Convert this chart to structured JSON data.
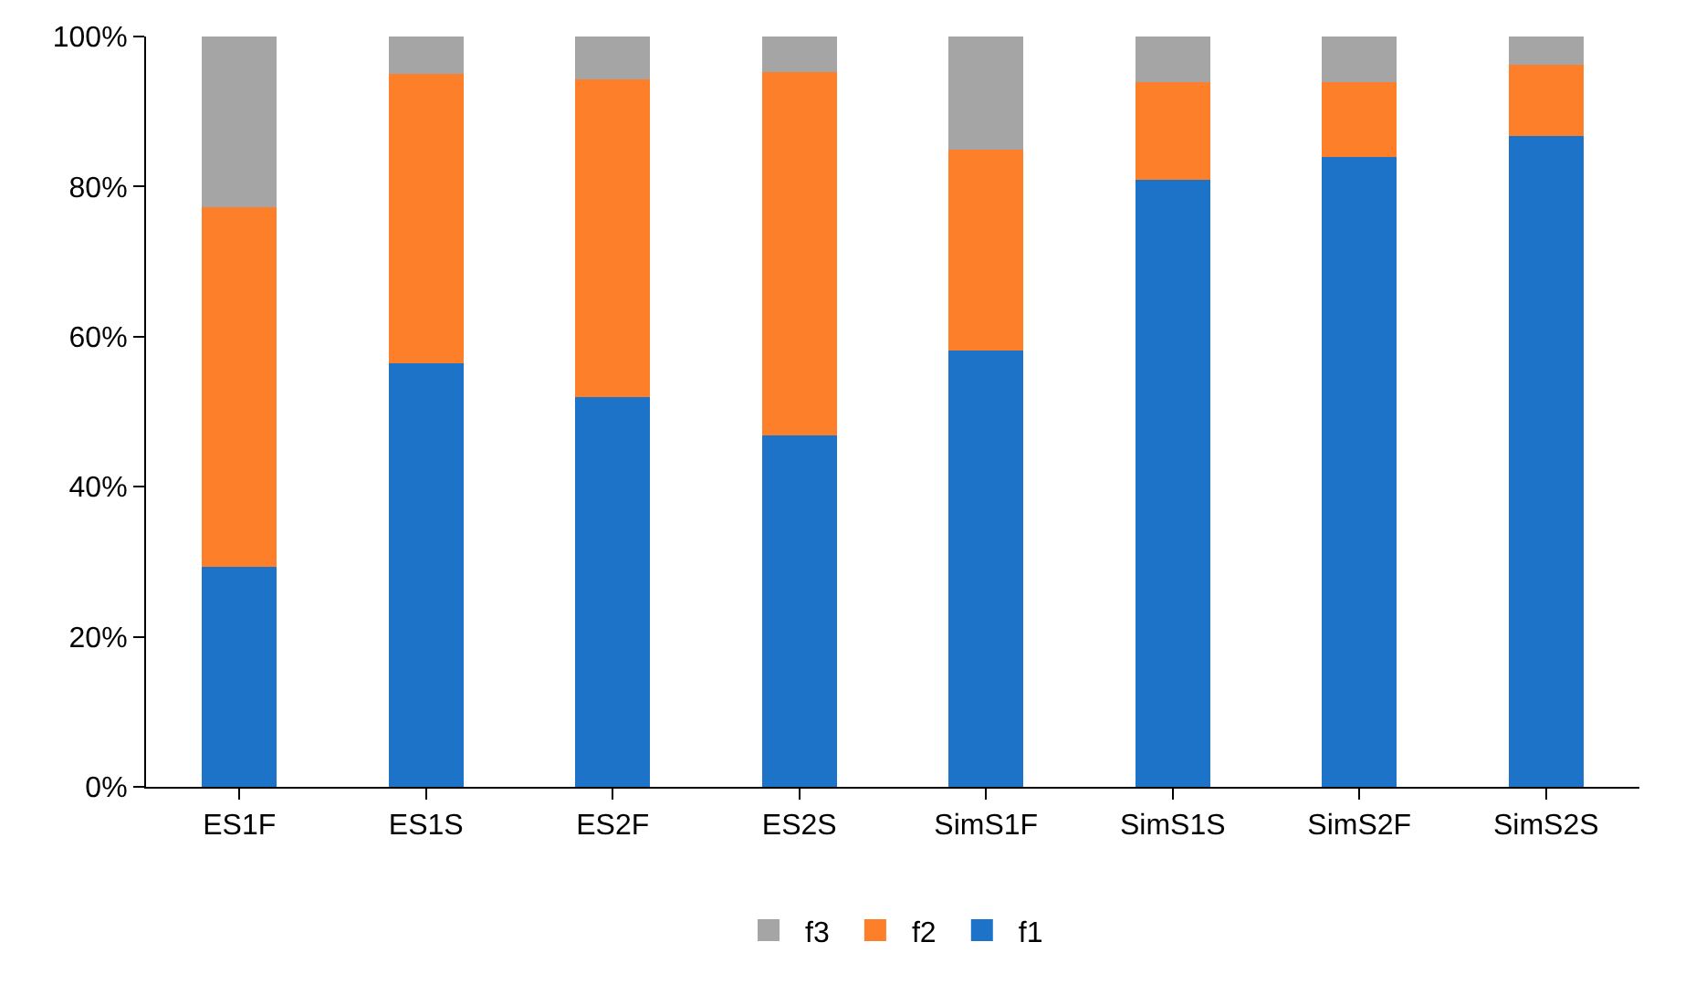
{
  "chart_data": {
    "type": "bar",
    "stacked": true,
    "categories": [
      "ES1F",
      "ES1S",
      "ES2F",
      "ES2S",
      "SimS1F",
      "SimS1S",
      "SimS2F",
      "SimS2S"
    ],
    "series": [
      {
        "name": "f1",
        "color": "#1c73c8",
        "values": [
          29.3,
          56.5,
          52.0,
          46.8,
          58.2,
          80.9,
          83.9,
          86.8
        ]
      },
      {
        "name": "f2",
        "color": "#fd7f2a",
        "values": [
          48.0,
          38.5,
          42.3,
          48.5,
          26.7,
          13.0,
          10.0,
          9.4
        ]
      },
      {
        "name": "f3",
        "color": "#a5a5a5",
        "values": [
          22.7,
          5.0,
          5.7,
          4.7,
          15.1,
          6.1,
          6.1,
          3.8
        ]
      }
    ],
    "ylim": [
      0,
      100
    ],
    "yticks": [
      {
        "value": 0,
        "label": "0%"
      },
      {
        "value": 20,
        "label": "20%"
      },
      {
        "value": 40,
        "label": "40%"
      },
      {
        "value": 60,
        "label": "60%"
      },
      {
        "value": 80,
        "label": "80%"
      },
      {
        "value": 100,
        "label": "100%"
      }
    ],
    "grid": false,
    "legend": "bottom"
  }
}
